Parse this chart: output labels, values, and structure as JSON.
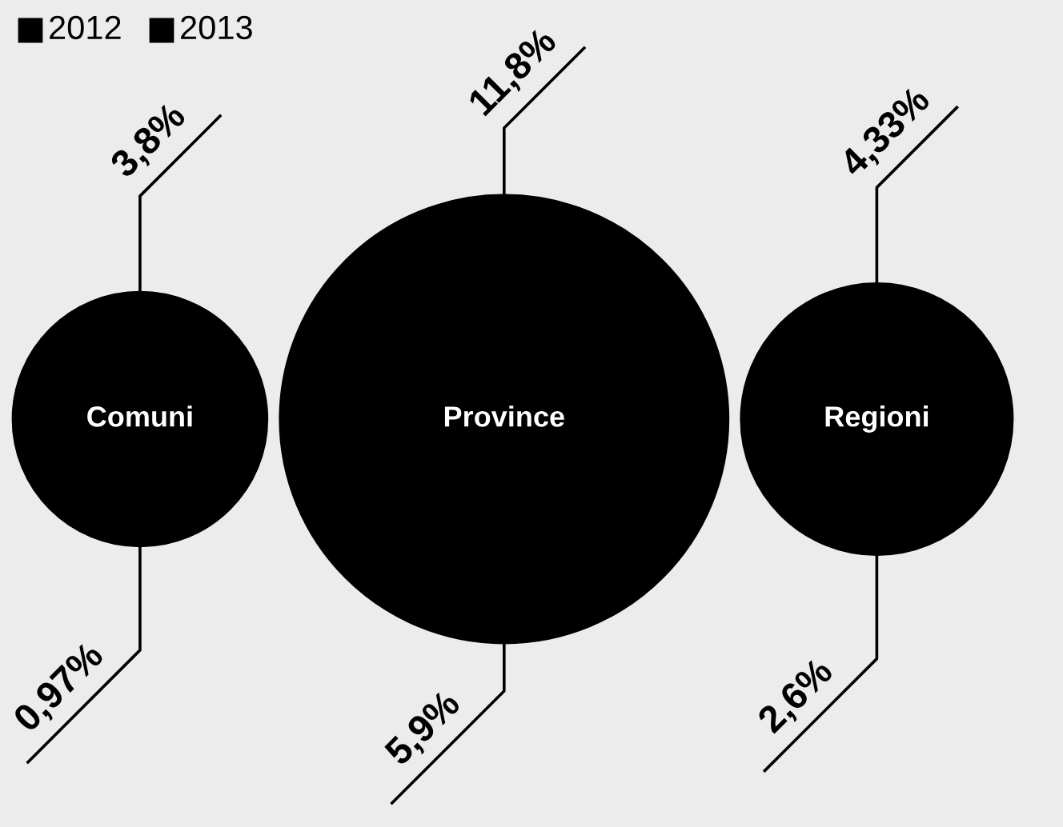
{
  "chart_data": {
    "type": "other",
    "categories": [
      "Comuni",
      "Province",
      "Regioni"
    ],
    "colors": [
      "#000000",
      "#000000",
      "#000000"
    ],
    "series": [
      {
        "name": "2012",
        "color": "#000000",
        "values": [
          3.8,
          11.8,
          4.33
        ],
        "value_labels": [
          "3,8%",
          "11,8%",
          "4,33%"
        ]
      },
      {
        "name": "2013",
        "color": "#000000",
        "values": [
          0.97,
          5.9,
          2.6
        ],
        "value_labels": [
          "0,97%",
          "5,9%",
          "2,6%"
        ]
      }
    ],
    "legend": "top left"
  }
}
